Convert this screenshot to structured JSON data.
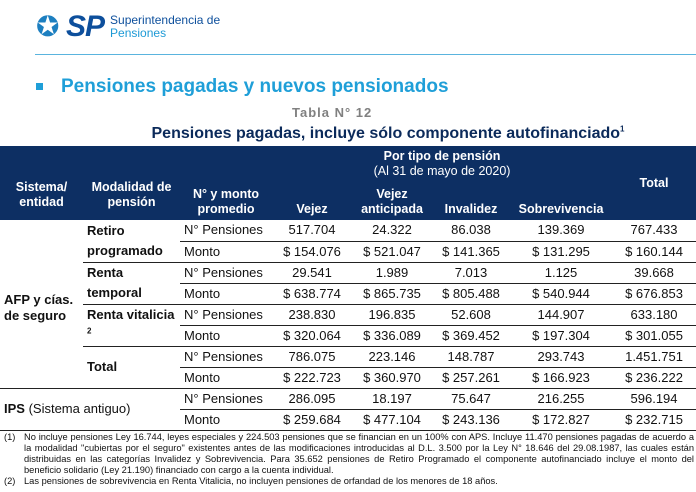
{
  "header": {
    "logo_mark": "SP",
    "org_line1": "Superintendencia de",
    "org_line2": "Pensiones"
  },
  "section_title": "Pensiones pagadas y nuevos pensionados",
  "table_number": "Tabla N° 12",
  "table_title": "Pensiones pagadas, incluye sólo componente autofinanciado",
  "table_title_sup": "1",
  "columns": {
    "sistema": "Sistema/ entidad",
    "modalidad": "Modalidad de pensión",
    "nmonto": "N° y monto promedio",
    "por_tipo": "Por tipo de pensión",
    "fecha": "(Al 31 de mayo de 2020)",
    "vejez": "Vejez",
    "vejez_ant": "Vejez anticipada",
    "invalidez": "Invalidez",
    "sobrevivencia": "Sobrevivencia",
    "total": "Total"
  },
  "labels": {
    "afp": "AFP y cías. de seguro",
    "ips_bold": "IPS",
    "ips_rest": " (Sistema antiguo)",
    "n": "N° Pensiones",
    "m": "Monto"
  },
  "rows": [
    {
      "mod": "Retiro programado",
      "sup": "",
      "n": [
        "517.704",
        "24.322",
        "86.038",
        "139.369",
        "767.433"
      ],
      "m": [
        "$ 154.076",
        "$ 521.047",
        "$ 141.365",
        "$ 131.295",
        "$ 160.144"
      ]
    },
    {
      "mod": "Renta temporal",
      "sup": "",
      "n": [
        "29.541",
        "1.989",
        "7.013",
        "1.125",
        "39.668"
      ],
      "m": [
        "$ 638.774",
        "$ 865.735",
        "$ 805.488",
        "$ 540.944",
        "$ 676.853"
      ]
    },
    {
      "mod": "Renta vitalicia",
      "sup": "2",
      "n": [
        "238.830",
        "196.835",
        "52.608",
        "144.907",
        "633.180"
      ],
      "m": [
        "$ 320.064",
        "$ 336.089",
        "$ 369.452",
        "$ 197.304",
        "$ 301.055"
      ]
    },
    {
      "mod": "Total",
      "sup": "",
      "n": [
        "786.075",
        "223.146",
        "148.787",
        "293.743",
        "1.451.751"
      ],
      "m": [
        "$ 222.723",
        "$ 360.970",
        "$ 257.261",
        "$ 166.923",
        "$ 236.222"
      ]
    }
  ],
  "ips": {
    "n": [
      "286.095",
      "18.197",
      "75.647",
      "216.255",
      "596.194"
    ],
    "m": [
      "$ 259.684",
      "$ 477.104",
      "$ 243.136",
      "$ 172.827",
      "$ 232.715"
    ]
  },
  "footnotes": [
    {
      "n": "(1)",
      "t": "No incluye pensiones Ley 16.744, leyes especiales y 224.503 pensiones que se financian en un 100% con APS. Incluye 11.470 pensiones pagadas de acuerdo a la modalidad \"cubiertas por el seguro\" existentes antes de las modificaciones introducidas al D.L. 3.500 por la Ley N° 18.646 del 29.08.1987, las cuales están distribuidas en las categorías Invalidez y Sobrevivencia. Para 35.652 pensiones de Retiro Programado el componente autofinanciado incluye el monto del beneficio solidario (Ley 21.190) financiado con cargo a la cuenta individual."
    },
    {
      "n": "(2)",
      "t": "Las pensiones de sobrevivencia en Renta Vitalicia, no incluyen pensiones de orfandad de los menores de 18 años."
    }
  ]
}
